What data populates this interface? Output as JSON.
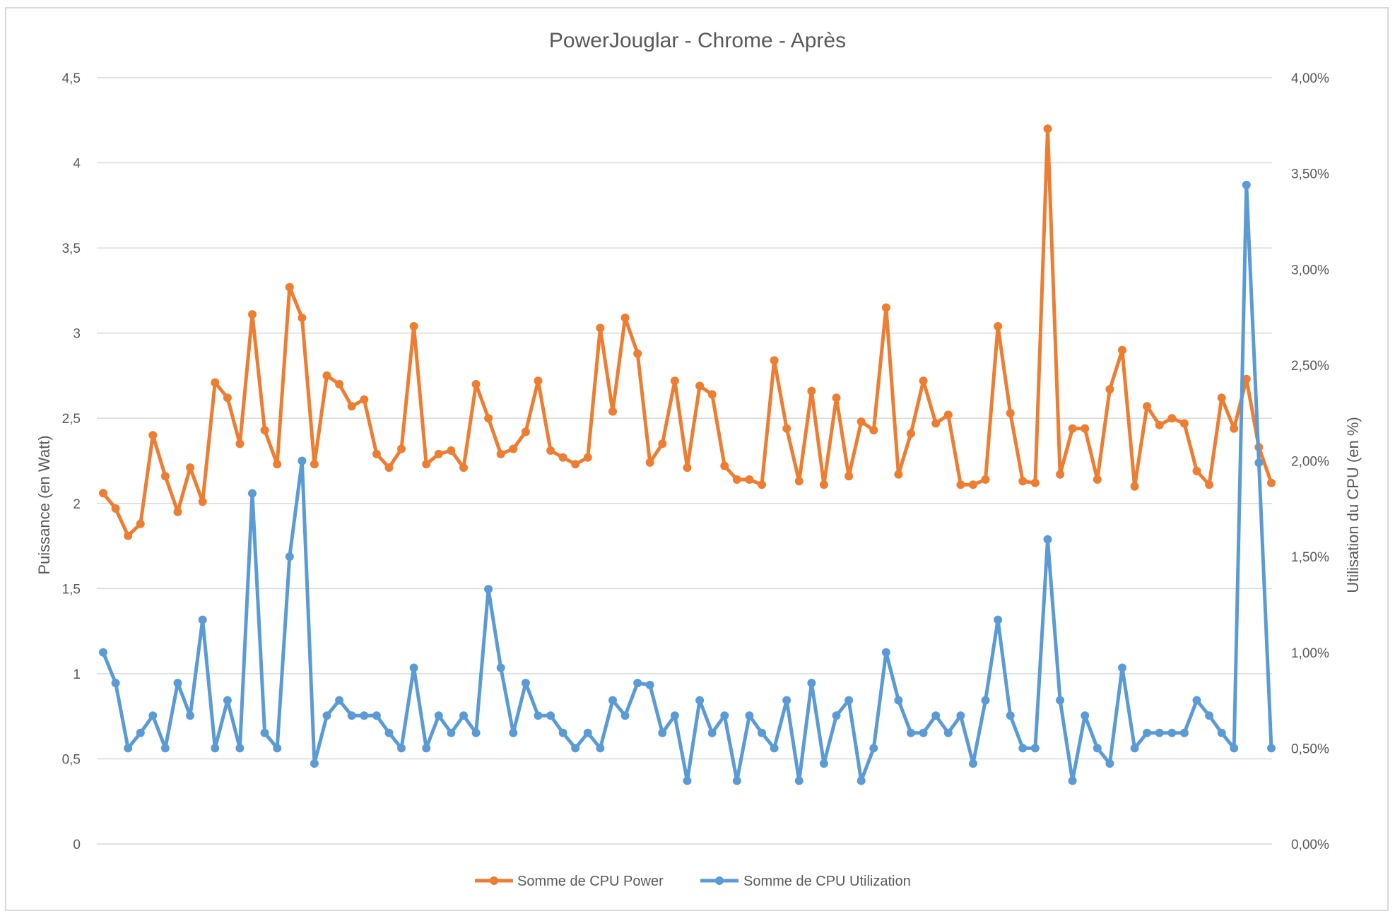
{
  "chart_data": {
    "type": "line",
    "title": "PowerJouglar - Chrome - Après",
    "ylabel": "Puissance (en Watt)",
    "y2label": "Utilisation du CPU (en %)",
    "ylim": [
      0,
      4.5
    ],
    "y2lim": [
      0,
      0.04
    ],
    "yticks": [
      "0",
      "0,5",
      "1",
      "1,5",
      "2",
      "2,5",
      "3",
      "3,5",
      "4",
      "4,5"
    ],
    "y2ticks": [
      "0,00%",
      "0,50%",
      "1,00%",
      "1,50%",
      "2,00%",
      "2,50%",
      "3,00%",
      "3,50%",
      "4,00%"
    ],
    "gridlines": true,
    "legend_position": "bottom",
    "series": [
      {
        "name": "Somme de CPU Power",
        "axis": "left",
        "color": "#ed7d31",
        "values": [
          2.06,
          1.97,
          1.81,
          1.88,
          2.4,
          2.16,
          1.95,
          2.21,
          2.01,
          2.71,
          2.62,
          2.35,
          3.11,
          2.43,
          2.23,
          3.27,
          3.09,
          2.23,
          2.75,
          2.7,
          2.57,
          2.61,
          2.29,
          2.21,
          2.32,
          3.04,
          2.23,
          2.29,
          2.31,
          2.21,
          2.7,
          2.5,
          2.29,
          2.32,
          2.42,
          2.72,
          2.31,
          2.27,
          2.23,
          2.27,
          3.03,
          2.54,
          3.09,
          2.88,
          2.24,
          2.35,
          2.72,
          2.21,
          2.69,
          2.64,
          2.22,
          2.14,
          2.14,
          2.11,
          2.84,
          2.44,
          2.13,
          2.66,
          2.11,
          2.62,
          2.16,
          2.48,
          2.43,
          3.15,
          2.17,
          2.41,
          2.72,
          2.47,
          2.52,
          2.11,
          2.11,
          2.14,
          3.04,
          2.53,
          2.13,
          2.12,
          4.2,
          2.17,
          2.44,
          2.44,
          2.14,
          2.67,
          2.9,
          2.1,
          2.57,
          2.46,
          2.5,
          2.47,
          2.19,
          2.11,
          2.62,
          2.44,
          2.73,
          2.33,
          2.12
        ]
      },
      {
        "name": "Somme de CPU Utilization",
        "axis": "right",
        "color": "#5b9bd5",
        "values": [
          0.01,
          0.0084,
          0.005,
          0.0058,
          0.0067,
          0.005,
          0.0084,
          0.0067,
          0.0117,
          0.005,
          0.0075,
          0.005,
          0.0183,
          0.0058,
          0.005,
          0.015,
          0.02,
          0.0042,
          0.0067,
          0.0075,
          0.0067,
          0.0067,
          0.0067,
          0.0058,
          0.005,
          0.0092,
          0.005,
          0.0067,
          0.0058,
          0.0067,
          0.0058,
          0.0133,
          0.0092,
          0.0058,
          0.0084,
          0.0067,
          0.0067,
          0.0058,
          0.005,
          0.0058,
          0.005,
          0.0075,
          0.0067,
          0.0084,
          0.0083,
          0.0058,
          0.0067,
          0.0033,
          0.0075,
          0.0058,
          0.0067,
          0.0033,
          0.0067,
          0.0058,
          0.005,
          0.0075,
          0.0033,
          0.0084,
          0.0042,
          0.0067,
          0.0075,
          0.0033,
          0.005,
          0.01,
          0.0075,
          0.0058,
          0.0058,
          0.0067,
          0.0058,
          0.0067,
          0.0042,
          0.0075,
          0.0117,
          0.0067,
          0.005,
          0.005,
          0.0159,
          0.0075,
          0.0033,
          0.0067,
          0.005,
          0.0042,
          0.0092,
          0.005,
          0.0058,
          0.0058,
          0.0058,
          0.0058,
          0.0075,
          0.0067,
          0.0058,
          0.005,
          0.0344,
          0.0199,
          0.005
        ]
      }
    ]
  }
}
